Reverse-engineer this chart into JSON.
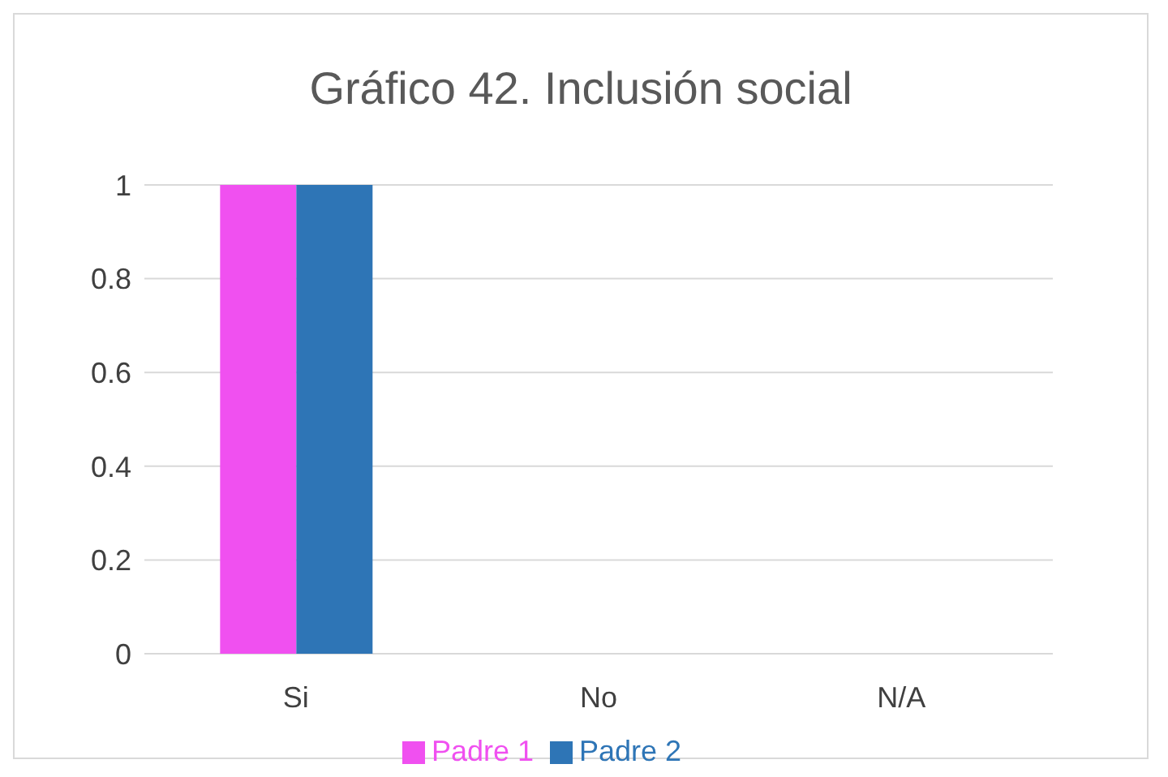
{
  "chart_data": {
    "type": "bar",
    "title": "Gráfico 42.  Inclusión social",
    "categories": [
      "Si",
      "No",
      "N/A"
    ],
    "series": [
      {
        "name": "Padre 1",
        "color": "#f050f0",
        "values": [
          1,
          0,
          0
        ]
      },
      {
        "name": "Padre 2",
        "color": "#2e75b6",
        "values": [
          1,
          0,
          0
        ]
      }
    ],
    "ylim": [
      0,
      1
    ],
    "yticks": [
      0,
      0.2,
      0.4,
      0.6,
      0.8,
      1
    ],
    "grid": "y",
    "legend": "bottom"
  }
}
